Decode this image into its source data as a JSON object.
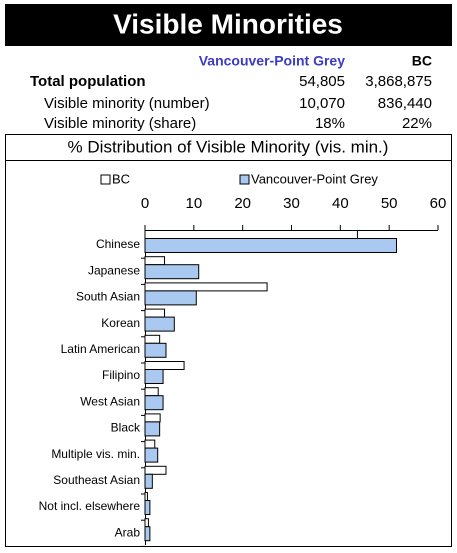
{
  "header": {
    "title": "Visible Minorities"
  },
  "table": {
    "columns": [
      "Vancouver-Point Grey",
      "BC"
    ],
    "rows": [
      {
        "label": "Total population",
        "values": [
          "54,805",
          "3,868,875"
        ]
      },
      {
        "label": "Visible minority (number)",
        "values": [
          "10,070",
          "836,440"
        ]
      },
      {
        "label": "Visible minority (share)",
        "values": [
          "18%",
          "22%"
        ]
      }
    ]
  },
  "chart_data": {
    "type": "bar",
    "orientation": "horizontal",
    "title": "% Distribution of Visible Minority (vis. min.)",
    "categories": [
      "Chinese",
      "Japanese",
      "South Asian",
      "Korean",
      "Latin American",
      "Filipino",
      "West Asian",
      "Black",
      "Multiple vis. min.",
      "Southeast Asian",
      "Not incl. elsewhere",
      "Arab"
    ],
    "series": [
      {
        "name": "BC",
        "color": "#ffffff",
        "values": [
          43.5,
          4,
          25,
          4,
          3,
          8,
          2.7,
          3.1,
          2,
          4.3,
          0.5,
          0.7
        ]
      },
      {
        "name": "Vancouver-Point Grey",
        "color": "#a9c9f0",
        "values": [
          51.5,
          11,
          10.5,
          6,
          4.3,
          3.7,
          3.7,
          3,
          2.6,
          1.5,
          1,
          1
        ]
      }
    ],
    "xlim": [
      0,
      60
    ],
    "xticks": [
      0,
      10,
      20,
      30,
      40,
      50,
      60
    ],
    "legend": "top"
  }
}
